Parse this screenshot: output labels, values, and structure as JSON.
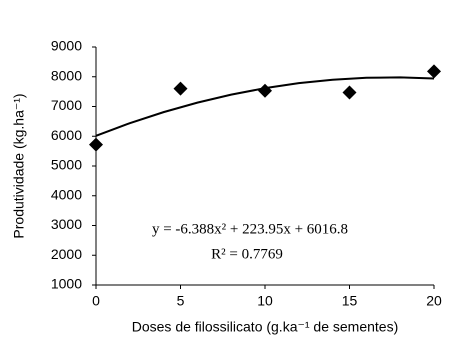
{
  "chart_data": {
    "type": "scatter",
    "x_label": "Doses de filossilicato (g.ka⁻¹ de sementes)",
    "y_label": "Produtividade (kg.ha⁻¹)",
    "annotations": [
      "y = -6.388x² + 223.95x + 6016.8",
      "R² = 0.7769"
    ],
    "series": [
      {
        "style": "markers",
        "color": "#000000",
        "x": [
          0,
          5,
          10,
          15,
          20
        ],
        "values": [
          5720,
          7600,
          7530,
          7470,
          8180
        ]
      },
      {
        "style": "line",
        "color": "#000000",
        "x": [
          0,
          2,
          4,
          6,
          8,
          10,
          12,
          14,
          16,
          18,
          20
        ],
        "values": [
          6016.8,
          6439.1,
          6810.4,
          7130.5,
          7399.6,
          7617.5,
          7784.3,
          7900.1,
          7964.7,
          7978.2,
          7940.6
        ]
      }
    ],
    "xlim": [
      0,
      20
    ],
    "xticks": [
      0,
      5,
      10,
      15,
      20
    ],
    "ylim": [
      1000,
      9000
    ],
    "yticks": [
      1000,
      2000,
      3000,
      4000,
      5000,
      6000,
      7000,
      8000,
      9000
    ],
    "grid": false
  }
}
